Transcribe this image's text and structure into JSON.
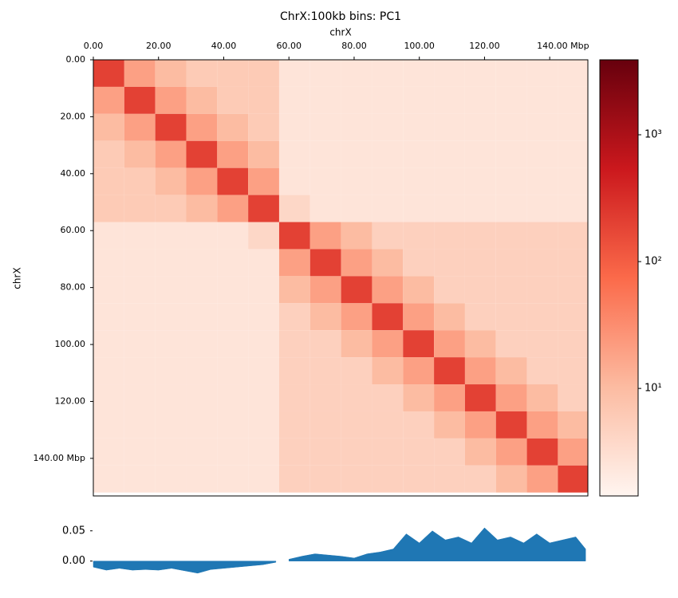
{
  "chart_data": [
    {
      "type": "heatmap",
      "title": "ChrX:100kb bins: PC1",
      "xlabel": "chrX",
      "ylabel": "chrX",
      "bin_edges": [
        0,
        9.5,
        19,
        28.5,
        38,
        47.5,
        57,
        66.5,
        76,
        85.5,
        95,
        104.5,
        114,
        123.5,
        133,
        142.5,
        152
      ],
      "matrix": [
        [
          200,
          20,
          10,
          6,
          6,
          6,
          2.5,
          2.5,
          2.5,
          2.5,
          2.5,
          2.5,
          2.5,
          2.5,
          2.5,
          2.5
        ],
        [
          20,
          200,
          20,
          10,
          6,
          6,
          2.5,
          2.5,
          2.5,
          2.5,
          2.5,
          2.5,
          2.5,
          2.5,
          2.5,
          2.5
        ],
        [
          10,
          20,
          200,
          20,
          10,
          6,
          2.5,
          2.5,
          2.5,
          2.5,
          2.5,
          2.5,
          2.5,
          2.5,
          2.5,
          2.5
        ],
        [
          6,
          10,
          20,
          200,
          20,
          10,
          2.5,
          2.5,
          2.5,
          2.5,
          2.5,
          2.5,
          2.5,
          2.5,
          2.5,
          2.5
        ],
        [
          6,
          6,
          10,
          20,
          200,
          20,
          2.5,
          2.5,
          2.5,
          2.5,
          2.5,
          2.5,
          2.5,
          2.5,
          2.5,
          2.5
        ],
        [
          6,
          6,
          6,
          10,
          20,
          200,
          4,
          2.5,
          2.5,
          2.5,
          2.5,
          2.5,
          2.5,
          2.5,
          2.5,
          2.5
        ],
        [
          2.5,
          2.5,
          2.5,
          2.5,
          2.5,
          4,
          200,
          20,
          10,
          5,
          5,
          5,
          5,
          5,
          5,
          5
        ],
        [
          2.5,
          2.5,
          2.5,
          2.5,
          2.5,
          2.5,
          20,
          200,
          20,
          10,
          5,
          5,
          5,
          5,
          5,
          5
        ],
        [
          2.5,
          2.5,
          2.5,
          2.5,
          2.5,
          2.5,
          10,
          20,
          200,
          20,
          10,
          5,
          5,
          5,
          5,
          5
        ],
        [
          2.5,
          2.5,
          2.5,
          2.5,
          2.5,
          2.5,
          5,
          10,
          20,
          200,
          20,
          10,
          5,
          5,
          5,
          5
        ],
        [
          2.5,
          2.5,
          2.5,
          2.5,
          2.5,
          2.5,
          5,
          5,
          10,
          20,
          200,
          20,
          10,
          5,
          5,
          5
        ],
        [
          2.5,
          2.5,
          2.5,
          2.5,
          2.5,
          2.5,
          5,
          5,
          5,
          10,
          20,
          200,
          20,
          10,
          5,
          5
        ],
        [
          2.5,
          2.5,
          2.5,
          2.5,
          2.5,
          2.5,
          5,
          5,
          5,
          5,
          10,
          20,
          200,
          20,
          10,
          5
        ],
        [
          2.5,
          2.5,
          2.5,
          2.5,
          2.5,
          2.5,
          5,
          5,
          5,
          5,
          5,
          10,
          20,
          200,
          20,
          10
        ],
        [
          2.5,
          2.5,
          2.5,
          2.5,
          2.5,
          2.5,
          5,
          5,
          5,
          5,
          5,
          5,
          10,
          20,
          200,
          20
        ],
        [
          2.5,
          2.5,
          2.5,
          2.5,
          2.5,
          2.5,
          5,
          5,
          5,
          5,
          5,
          5,
          5,
          10,
          20,
          200
        ]
      ],
      "xlim": [
        0,
        151.7
      ],
      "ylim": [
        0,
        153.2
      ],
      "xticks": [
        {
          "value": 0,
          "label": "0.00"
        },
        {
          "value": 20,
          "label": "20.00"
        },
        {
          "value": 40,
          "label": "40.00"
        },
        {
          "value": 60,
          "label": "60.00"
        },
        {
          "value": 80,
          "label": "80.00"
        },
        {
          "value": 100,
          "label": "100.00"
        },
        {
          "value": 120,
          "label": "120.00"
        },
        {
          "value": 140,
          "label": "140.00  Mbp"
        }
      ],
      "yticks": [
        {
          "value": 0,
          "label": "0.00"
        },
        {
          "value": 20,
          "label": "20.00"
        },
        {
          "value": 40,
          "label": "40.00"
        },
        {
          "value": 60,
          "label": "60.00"
        },
        {
          "value": 80,
          "label": "80.00"
        },
        {
          "value": 100,
          "label": "100.00"
        },
        {
          "value": 120,
          "label": "120.00"
        },
        {
          "value": 140,
          "label": "140.00  Mbp"
        }
      ],
      "colorbar": {
        "scale": "log",
        "clim": [
          1.42,
          3900
        ],
        "ticks": [
          {
            "value": 10,
            "label": "10¹"
          },
          {
            "value": 100,
            "label": "10²"
          },
          {
            "value": 1000,
            "label": "10³"
          }
        ],
        "colors": [
          "#fff5f0",
          "#fcbba1",
          "#fb6a4a",
          "#cb181d",
          "#67000d"
        ]
      }
    },
    {
      "type": "area",
      "color": "#1f77b4",
      "x": [
        0,
        4,
        8,
        12,
        16,
        20,
        24,
        28,
        32,
        36,
        40,
        44,
        48,
        52,
        56,
        58,
        60,
        64,
        68,
        72,
        76,
        80,
        84,
        88,
        92,
        96,
        100,
        104,
        108,
        112,
        116,
        120,
        124,
        128,
        132,
        136,
        140,
        144,
        148,
        151
      ],
      "values": [
        -0.01,
        -0.015,
        -0.012,
        -0.015,
        -0.014,
        -0.015,
        -0.012,
        -0.016,
        -0.02,
        -0.014,
        -0.012,
        -0.01,
        -0.008,
        -0.006,
        -0.002,
        null,
        0.003,
        0.008,
        0.012,
        0.01,
        0.008,
        0.005,
        0.012,
        0.015,
        0.02,
        0.045,
        0.03,
        0.05,
        0.035,
        0.04,
        0.03,
        0.055,
        0.035,
        0.04,
        0.03,
        0.045,
        0.03,
        0.035,
        0.04,
        0.02
      ],
      "xlim": [
        0,
        151.7
      ],
      "ylim": [
        -0.036,
        0.08
      ],
      "yticks": [
        {
          "value": 0,
          "label": "0.00"
        },
        {
          "value": 0.05,
          "label": "0.05"
        }
      ]
    }
  ]
}
